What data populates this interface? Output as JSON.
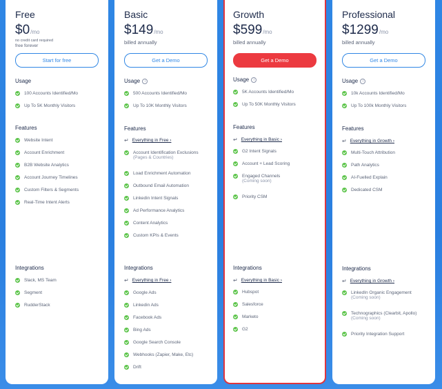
{
  "plans": [
    {
      "name": "Free",
      "price": "$0",
      "per": "/mo",
      "sub1": "no credit card required",
      "sub2": "free forever",
      "cta": "Start for free",
      "usage_title": "Usage",
      "usage": [
        "100 Accounts Identified/Mo",
        "Up To 5K Monthly Visitors"
      ],
      "features_title": "Features",
      "features": [
        "Website Intent",
        "Account Enrichment",
        "B2B Website Analytics",
        "Account Journey Timelines",
        "Custom Filters & Segments",
        "Real-Time Intent Alerts"
      ],
      "integrations_title": "Integrations",
      "integrations": [
        "Slack, MS Team",
        "Segment",
        "RudderStack"
      ]
    },
    {
      "name": "Basic",
      "price": "$149",
      "per": "/mo",
      "sub1": "billed annually",
      "cta": "Get a Demo",
      "usage_title": "Usage",
      "info": "i",
      "usage": [
        "500 Accounts Identified/Mo",
        "Up To 10K Monthly Visitors"
      ],
      "features_title": "Features",
      "features_inherit": "Everything in Free",
      "features": [
        {
          "text": "Account Identification Exclusions",
          "note": "(Pages & Countries)"
        },
        {
          "text": "Load Enrichment Automation"
        },
        {
          "text": "Outbound Email Automation"
        },
        {
          "text": "Linkedin Intent Signals"
        },
        {
          "text": "Ad Performance Analytics"
        },
        {
          "text": "Content Analytics"
        },
        {
          "text": "Custom KPIs & Events"
        }
      ],
      "integrations_title": "Integrations",
      "integrations_inherit": "Everything in Free",
      "integrations": [
        "Google Ads",
        "Linkedin Ads",
        "Facebook Ads",
        "Bing Ads",
        "Google Search Console",
        "Webhooks (Zapier, Make, Etc)",
        "Drift"
      ]
    },
    {
      "name": "Growth",
      "price": "$599",
      "per": "/mo",
      "sub1": "billed annually",
      "cta": "Get a Demo",
      "usage_title": "Usage",
      "info": "i",
      "usage": [
        "5K Accounts Identified/Mo",
        "Up To 50K Monthly Visitors"
      ],
      "features_title": "Features",
      "features_inherit": "Everything in Basic",
      "features": [
        {
          "text": "G2 Intent Signals"
        },
        {
          "text": "Account + Lead Scoring"
        },
        {
          "text": "Engaged Channels",
          "note": "(Coming soon)"
        },
        {
          "text": "Priority CSM"
        }
      ],
      "integrations_title": "Integrations",
      "integrations_inherit": "Everything in Basic",
      "integrations": [
        "Hubspot",
        "Salesforce",
        "Marketo",
        "G2"
      ]
    },
    {
      "name": "Professional",
      "price": "$1299",
      "per": "/mo",
      "sub1": "billed annually",
      "cta": "Get a Demo",
      "usage_title": "Usage",
      "info": "i",
      "usage": [
        "10k Accounts Identified/Mo",
        "Up To 100k Monthly Visitors"
      ],
      "features_title": "Features",
      "features_inherit": "Everything in Growth",
      "features": [
        {
          "text": "Multi-Touch Attribution"
        },
        {
          "text": "Path Analytics"
        },
        {
          "text": "AI-Fuelled Explain"
        },
        {
          "text": "Dedicated CSM"
        }
      ],
      "integrations_title": "Integrations",
      "integrations_inherit": "Everything in Growth",
      "integrations": [
        {
          "text": "LinkedIn Organic Engagement",
          "note": "(Coming soon)"
        },
        {
          "text": "Technographics (Clearbit, Apollo)",
          "note": "(Coming soon)"
        },
        {
          "text": "Priority Integration Support"
        }
      ]
    }
  ],
  "colors": {
    "accent": "#2f86e4",
    "cta_red": "#ec3a40",
    "check": "#5cc44a",
    "featured_border": "#e0343c"
  }
}
